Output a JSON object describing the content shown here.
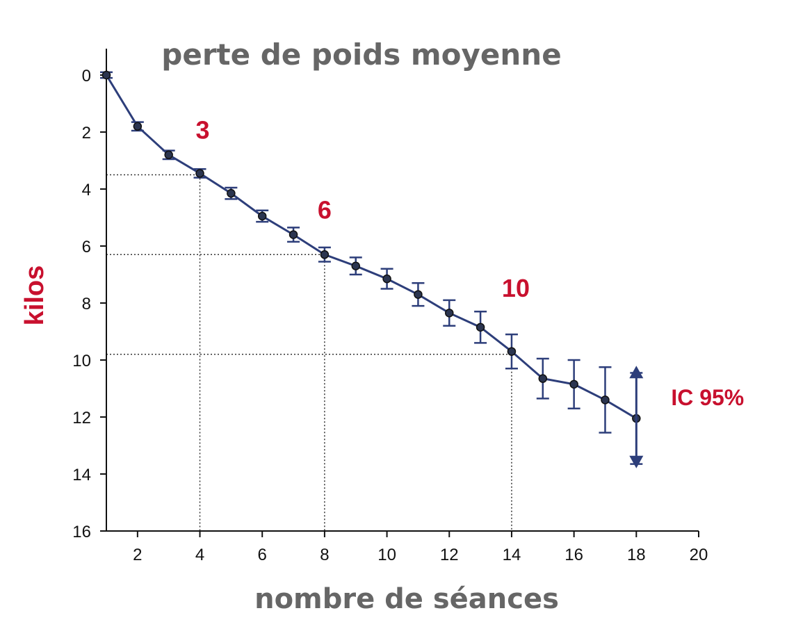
{
  "chart_data": {
    "type": "line",
    "title": "perte de poids moyenne",
    "xlabel": "nombre de séances",
    "ylabel": "kilos",
    "xlim": [
      1,
      20
    ],
    "ylim": [
      0,
      16
    ],
    "y_inverted": true,
    "xticks": [
      "2",
      "4",
      "6",
      "8",
      "10",
      "12",
      "14",
      "16",
      "18",
      "20"
    ],
    "yticks": [
      "0",
      "2",
      "4",
      "6",
      "8",
      "10",
      "12",
      "14",
      "16"
    ],
    "grid": false,
    "series": [
      {
        "x": [
          1,
          2,
          3,
          4,
          5,
          6,
          7,
          8,
          9,
          10,
          11,
          12,
          13,
          14,
          15,
          16,
          17,
          18
        ],
        "y": [
          0.0,
          1.8,
          2.8,
          3.45,
          4.15,
          4.95,
          5.6,
          6.3,
          6.7,
          7.15,
          7.7,
          8.35,
          8.85,
          9.7,
          10.65,
          10.85,
          11.4,
          12.05
        ],
        "err_low": [
          0.1,
          0.15,
          0.15,
          0.15,
          0.2,
          0.2,
          0.25,
          0.25,
          0.3,
          0.35,
          0.4,
          0.45,
          0.55,
          0.6,
          0.7,
          0.85,
          1.15,
          1.6
        ],
        "err_high": [
          0.1,
          0.15,
          0.15,
          0.15,
          0.2,
          0.2,
          0.25,
          0.25,
          0.3,
          0.35,
          0.4,
          0.45,
          0.55,
          0.6,
          0.7,
          0.85,
          1.15,
          1.6
        ]
      }
    ],
    "reference_lines": [
      {
        "label": "3",
        "x": 4,
        "y": 3.5
      },
      {
        "label": "6",
        "x": 8,
        "y": 6.3
      },
      {
        "label": "10",
        "x": 14,
        "y": 9.8
      }
    ],
    "ci_marker": {
      "label": "IC 95%",
      "x": 18,
      "y_from": 10.3,
      "y_to": 13.7
    },
    "colors": {
      "line": "#2d3e7a",
      "marker": "#2b3550",
      "annotation": "#c8102e",
      "guide": "#333333"
    }
  }
}
